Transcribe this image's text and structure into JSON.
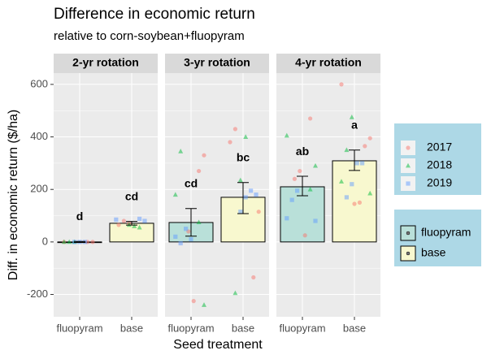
{
  "chart_data": {
    "type": "bar",
    "title": "Difference in economic return",
    "subtitle": "relative to corn-soybean+fluopyram",
    "x_label": "Seed treatment",
    "y_label": "Diff. in economic return ($/ha)",
    "ylim": [
      -285,
      643
    ],
    "yticks": [
      -200,
      0,
      200,
      400,
      600
    ],
    "grid": true,
    "categories": [
      "fluopyram",
      "base"
    ],
    "bar_colors": [
      "#b9e0d9",
      "#f8f8cf"
    ],
    "facets": [
      {
        "label": "2-yr rotation",
        "values": [
          0,
          71
        ],
        "error_low": [
          -2,
          64
        ],
        "error_high": [
          2,
          78
        ],
        "letters": [
          "d",
          "cd"
        ]
      },
      {
        "label": "3-yr rotation",
        "values": [
          74,
          170
        ],
        "error_low": [
          22,
          108
        ],
        "error_high": [
          127,
          226
        ],
        "letters": [
          "cd",
          "bc"
        ]
      },
      {
        "label": "4-yr rotation",
        "values": [
          210,
          309
        ],
        "error_low": [
          176,
          272
        ],
        "error_high": [
          250,
          350
        ],
        "letters": [
          "ab",
          "a"
        ]
      }
    ],
    "points": [
      {
        "name": "2017",
        "color": "#F8766D",
        "shape": "circle",
        "values": [
          [
            [
              0,
              0,
              0
            ],
            [
              72,
              80,
              65
            ]
          ],
          [
            [
              330,
              270,
              -225,
              40
            ],
            [
              430,
              380,
              115,
              -135
            ]
          ],
          [
            [
              470,
              25,
              270,
              240
            ],
            [
              600,
              395,
              365,
              150,
              145
            ]
          ]
        ]
      },
      {
        "name": "2018",
        "color": "#00BA38",
        "shape": "triangle",
        "values": [
          [
            [
              0,
              0,
              0
            ],
            [
              55,
              60,
              65
            ]
          ],
          [
            [
              345,
              180,
              -240,
              75
            ],
            [
              400,
              235,
              -195
            ]
          ],
          [
            [
              405,
              290,
              200
            ],
            [
              475,
              350,
              230,
              185
            ]
          ]
        ]
      },
      {
        "name": "2019",
        "color": "#619CFF",
        "shape": "square",
        "values": [
          [
            [
              0,
              0,
              0
            ],
            [
              85,
              80,
              88
            ]
          ],
          [
            [
              10,
              50,
              -5,
              20
            ],
            [
              180,
              195,
              170,
              115
            ]
          ],
          [
            [
              195,
              160,
              90,
              80
            ],
            [
              300,
              300,
              220,
              170
            ]
          ]
        ]
      }
    ]
  }
}
